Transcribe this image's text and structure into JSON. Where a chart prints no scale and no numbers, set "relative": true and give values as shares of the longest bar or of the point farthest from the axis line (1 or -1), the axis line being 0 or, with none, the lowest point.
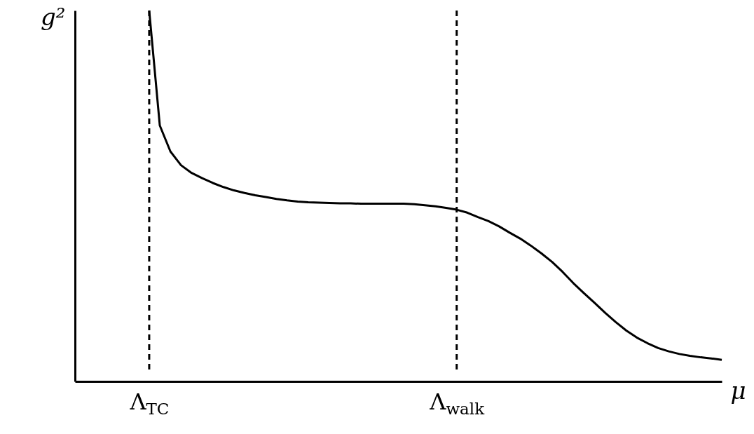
{
  "chart_data": {
    "type": "line",
    "relative": true,
    "xlabel": "μ",
    "ylabel": "g²",
    "tick_labels": "x",
    "categories": [
      null,
      null,
      null,
      null,
      null,
      null,
      null,
      "Λ$_{TC}$",
      null,
      null,
      null,
      null,
      null,
      null,
      null,
      null,
      null,
      null,
      null,
      null,
      null,
      null,
      null,
      null,
      null,
      null,
      null,
      null,
      null,
      null,
      null,
      null,
      null,
      null,
      null,
      null,
      "Λ$_{walk}$",
      null,
      null,
      null,
      null,
      null,
      null,
      null,
      null,
      null,
      null,
      null,
      null,
      null,
      null,
      null,
      null,
      null,
      null,
      null,
      null,
      null,
      null,
      null,
      null,
      null
    ],
    "series": [
      {
        "color": "#000000",
        "values": [
          null,
          null,
          null,
          null,
          null,
          null,
          null,
          1.0,
          0.69,
          0.62,
          0.583,
          0.562,
          0.548,
          0.535,
          0.524,
          0.515,
          0.508,
          0.502,
          0.497,
          0.492,
          0.488,
          0.485,
          0.483,
          0.482,
          0.481,
          0.48,
          0.48,
          0.479,
          0.479,
          0.479,
          0.479,
          0.479,
          0.478,
          0.475,
          0.472,
          0.468,
          0.463,
          0.455,
          0.443,
          0.432,
          0.418,
          0.401,
          0.385,
          0.366,
          0.345,
          0.322,
          0.295,
          0.265,
          0.238,
          0.212,
          0.185,
          0.16,
          0.137,
          0.118,
          0.103,
          0.09,
          0.081,
          0.074,
          0.069,
          0.065,
          0.062,
          0.058
        ]
      }
    ],
    "ref_lines": [
      {
        "axis": "x",
        "value": "Λ$_{TC}$",
        "color": "#000000",
        "line_style": "dashed"
      },
      {
        "axis": "x",
        "value": "Λ$_{walk}$",
        "color": "#000000",
        "line_style": "dashed"
      }
    ]
  }
}
